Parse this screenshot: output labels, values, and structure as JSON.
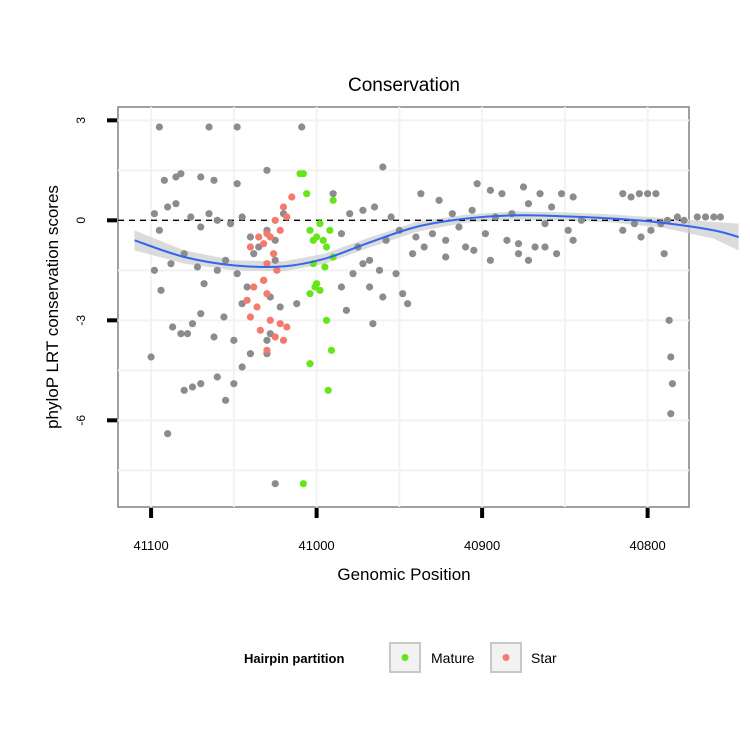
{
  "chart_data": {
    "type": "scatter",
    "title": "Conservation",
    "xlabel": "Genomic Position",
    "ylabel": "phyloP LRT conservation scores",
    "x_reversed": true,
    "xlim": [
      41120,
      40775
    ],
    "ylim": [
      -8.6,
      3.4
    ],
    "x_ticks": [
      41100,
      41000,
      40900,
      40800
    ],
    "x_tick_labels": [
      "41100",
      "41000",
      "40900",
      "40800"
    ],
    "y_ticks": [
      3,
      0,
      -3,
      -6
    ],
    "y_tick_labels": [
      "3",
      "0",
      "-3",
      "-6"
    ],
    "grid": true,
    "reference_line": {
      "y": 0,
      "style": "dashed"
    },
    "legend": {
      "title": "Hairpin partition",
      "placement": "bottom",
      "entries": [
        {
          "label": "Mature",
          "color": "#66e61a"
        },
        {
          "label": "Star",
          "color": "#f4796e"
        }
      ]
    },
    "colors": {
      "other": "#8c8c8c",
      "mature": "#66e61a",
      "star": "#f4796e",
      "smooth": "#3366ee",
      "band": "#cfcfcf"
    },
    "series": [
      {
        "group": "other",
        "points": [
          [
            41095,
            2.8
          ],
          [
            41065,
            2.8
          ],
          [
            41048,
            2.8
          ],
          [
            41009,
            2.8
          ],
          [
            41092,
            1.2
          ],
          [
            41085,
            1.3
          ],
          [
            41082,
            1.4
          ],
          [
            41070,
            1.3
          ],
          [
            41062,
            1.2
          ],
          [
            41048,
            1.1
          ],
          [
            41030,
            1.5
          ],
          [
            41098,
            0.2
          ],
          [
            41095,
            -0.3
          ],
          [
            41090,
            0.4
          ],
          [
            41085,
            0.5
          ],
          [
            41076,
            0.1
          ],
          [
            41070,
            -0.2
          ],
          [
            41065,
            0.2
          ],
          [
            41060,
            0.0
          ],
          [
            41052,
            -0.1
          ],
          [
            41045,
            0.1
          ],
          [
            41040,
            -0.5
          ],
          [
            41035,
            -0.8
          ],
          [
            41030,
            -0.3
          ],
          [
            41025,
            -0.6
          ],
          [
            41020,
            0.2
          ],
          [
            41098,
            -1.5
          ],
          [
            41094,
            -2.1
          ],
          [
            41088,
            -1.3
          ],
          [
            41080,
            -1.0
          ],
          [
            41072,
            -1.4
          ],
          [
            41068,
            -1.9
          ],
          [
            41060,
            -1.5
          ],
          [
            41055,
            -1.2
          ],
          [
            41048,
            -1.6
          ],
          [
            41042,
            -2.0
          ],
          [
            41038,
            -1.0
          ],
          [
            41032,
            -1.8
          ],
          [
            41028,
            -2.3
          ],
          [
            41025,
            -1.2
          ],
          [
            41087,
            -3.2
          ],
          [
            41082,
            -3.4
          ],
          [
            41078,
            -3.4
          ],
          [
            41075,
            -3.1
          ],
          [
            41070,
            -2.8
          ],
          [
            41062,
            -3.5
          ],
          [
            41056,
            -2.9
          ],
          [
            41050,
            -3.6
          ],
          [
            41045,
            -2.5
          ],
          [
            41030,
            -3.6
          ],
          [
            41028,
            -3.4
          ],
          [
            41022,
            -2.6
          ],
          [
            41012,
            -2.5
          ],
          [
            41080,
            -5.1
          ],
          [
            41075,
            -5.0
          ],
          [
            41070,
            -4.9
          ],
          [
            41060,
            -4.7
          ],
          [
            41055,
            -5.4
          ],
          [
            41050,
            -4.9
          ],
          [
            41045,
            -4.4
          ],
          [
            41040,
            -4.0
          ],
          [
            41030,
            -4.0
          ],
          [
            41100,
            -4.1
          ],
          [
            41090,
            -6.4
          ],
          [
            41025,
            -7.9
          ],
          [
            40990,
            0.8
          ],
          [
            40985,
            -0.4
          ],
          [
            40980,
            0.2
          ],
          [
            40975,
            -0.8
          ],
          [
            40972,
            0.3
          ],
          [
            40968,
            -1.2
          ],
          [
            40965,
            0.4
          ],
          [
            40960,
            1.6
          ],
          [
            40958,
            -0.6
          ],
          [
            40955,
            0.1
          ],
          [
            40952,
            -1.6
          ],
          [
            40950,
            -0.3
          ],
          [
            40948,
            -2.2
          ],
          [
            40945,
            -2.5
          ],
          [
            40942,
            -1.0
          ],
          [
            40940,
            -0.5
          ],
          [
            40937,
            0.8
          ],
          [
            40935,
            -0.8
          ],
          [
            40930,
            -0.4
          ],
          [
            40926,
            0.6
          ],
          [
            40922,
            -0.6
          ],
          [
            40918,
            0.2
          ],
          [
            40914,
            -0.2
          ],
          [
            40910,
            -0.8
          ],
          [
            40906,
            0.3
          ],
          [
            40903,
            1.1
          ],
          [
            40898,
            -0.4
          ],
          [
            40895,
            0.9
          ],
          [
            40892,
            0.1
          ],
          [
            40888,
            0.8
          ],
          [
            40885,
            -0.6
          ],
          [
            40882,
            0.2
          ],
          [
            40878,
            -0.7
          ],
          [
            40875,
            1.0
          ],
          [
            40872,
            0.5
          ],
          [
            40868,
            -0.8
          ],
          [
            40865,
            0.8
          ],
          [
            40862,
            -0.1
          ],
          [
            40858,
            0.4
          ],
          [
            40855,
            -1.0
          ],
          [
            40852,
            0.8
          ],
          [
            40848,
            -0.3
          ],
          [
            40845,
            0.7
          ],
          [
            40840,
            0.0
          ],
          [
            40985,
            -2.0
          ],
          [
            40978,
            -1.6
          ],
          [
            40972,
            -1.3
          ],
          [
            40968,
            -2.0
          ],
          [
            40962,
            -1.5
          ],
          [
            40966,
            -3.1
          ],
          [
            40982,
            -2.7
          ],
          [
            40960,
            -2.3
          ],
          [
            40922,
            -1.1
          ],
          [
            40905,
            -0.9
          ],
          [
            40895,
            -1.2
          ],
          [
            40878,
            -1.0
          ],
          [
            40872,
            -1.2
          ],
          [
            40862,
            -0.8
          ],
          [
            40845,
            -0.6
          ],
          [
            40815,
            0.8
          ],
          [
            40810,
            0.7
          ],
          [
            40805,
            0.8
          ],
          [
            40800,
            0.8
          ],
          [
            40795,
            0.8
          ],
          [
            40788,
            0.0
          ],
          [
            40782,
            0.1
          ],
          [
            40778,
            0.0
          ],
          [
            40770,
            0.1
          ],
          [
            40765,
            0.1
          ],
          [
            40760,
            0.1
          ],
          [
            40756,
            0.1
          ],
          [
            40815,
            -0.3
          ],
          [
            40808,
            -0.1
          ],
          [
            40804,
            -0.5
          ],
          [
            40798,
            -0.3
          ],
          [
            40792,
            -0.1
          ],
          [
            40790,
            -1.0
          ],
          [
            40787,
            -3.0
          ],
          [
            40786,
            -4.1
          ],
          [
            40785,
            -4.9
          ],
          [
            40786,
            -5.8
          ]
        ]
      },
      {
        "group": "mature",
        "points": [
          [
            41010,
            1.4
          ],
          [
            41008,
            1.4
          ],
          [
            41006,
            0.8
          ],
          [
            41004,
            -0.3
          ],
          [
            41002,
            -0.6
          ],
          [
            41000,
            -0.5
          ],
          [
            40998,
            -0.1
          ],
          [
            40996,
            -0.6
          ],
          [
            40994,
            -0.8
          ],
          [
            40992,
            -0.3
          ],
          [
            41004,
            -2.2
          ],
          [
            41000,
            -1.9
          ],
          [
            40998,
            -2.1
          ],
          [
            40995,
            -1.4
          ],
          [
            41002,
            -1.3
          ],
          [
            41001,
            -2.0
          ],
          [
            40990,
            -1.1
          ],
          [
            40994,
            -3.0
          ],
          [
            40991,
            -3.9
          ],
          [
            41004,
            -4.3
          ],
          [
            40993,
            -5.1
          ],
          [
            40990,
            0.6
          ],
          [
            41008,
            -7.9
          ]
        ]
      },
      {
        "group": "star",
        "points": [
          [
            41015,
            0.7
          ],
          [
            41020,
            0.4
          ],
          [
            41018,
            0.1
          ],
          [
            41025,
            0.0
          ],
          [
            41030,
            -0.4
          ],
          [
            41035,
            -0.5
          ],
          [
            41028,
            -0.5
          ],
          [
            41022,
            -0.3
          ],
          [
            41032,
            -0.7
          ],
          [
            41040,
            -0.8
          ],
          [
            41026,
            -1.0
          ],
          [
            41030,
            -1.3
          ],
          [
            41024,
            -1.5
          ],
          [
            41032,
            -1.8
          ],
          [
            41038,
            -2.0
          ],
          [
            41030,
            -2.2
          ],
          [
            41042,
            -2.4
          ],
          [
            41036,
            -2.6
          ],
          [
            41040,
            -2.9
          ],
          [
            41028,
            -3.0
          ],
          [
            41022,
            -3.1
          ],
          [
            41018,
            -3.2
          ],
          [
            41025,
            -3.5
          ],
          [
            41020,
            -3.6
          ],
          [
            41030,
            -3.9
          ],
          [
            41034,
            -3.3
          ]
        ]
      }
    ],
    "smooth": {
      "x": [
        41110,
        41080,
        41050,
        41020,
        40995,
        40970,
        40940,
        40910,
        40880,
        40850,
        40820,
        40790,
        40760,
        40745
      ],
      "y": [
        -0.6,
        -1.1,
        -1.35,
        -1.38,
        -1.15,
        -0.7,
        -0.2,
        0.05,
        0.15,
        0.12,
        0.05,
        -0.08,
        -0.3,
        -0.5
      ],
      "band": [
        0.3,
        0.2,
        0.15,
        0.15,
        0.15,
        0.15,
        0.15,
        0.12,
        0.12,
        0.12,
        0.12,
        0.15,
        0.25,
        0.4
      ]
    }
  }
}
